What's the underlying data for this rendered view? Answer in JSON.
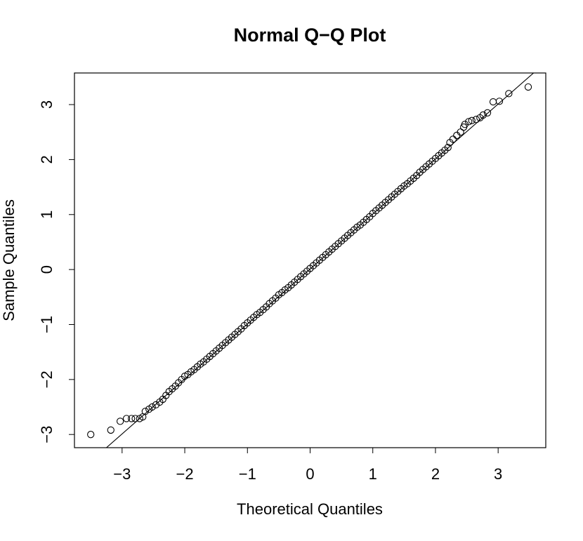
{
  "chart_data": {
    "type": "scatter",
    "title": "Normal Q−Q Plot",
    "x_label": "Theoretical Quantiles",
    "y_label": "Sample Quantiles",
    "xlim": [
      -3.76,
      3.76
    ],
    "ylim": [
      -3.24,
      3.575
    ],
    "xticks": [
      {
        "value": -3,
        "label": "−3"
      },
      {
        "value": -2,
        "label": "−2"
      },
      {
        "value": -1,
        "label": "−1"
      },
      0,
      1,
      2,
      3
    ],
    "yticks": [
      {
        "value": -3,
        "label": "−3"
      },
      {
        "value": -2,
        "label": "−2"
      },
      {
        "value": -1,
        "label": "−1"
      },
      0,
      1,
      2,
      3
    ],
    "color": "#000000",
    "qqline": {
      "intercept": 0.01,
      "slope": 1.0
    },
    "series": [
      {
        "name": "Sample",
        "x": [
          -3.5,
          -3.18,
          -3.03,
          -2.93,
          -2.85,
          -2.79,
          -2.72,
          -2.67,
          -2.63,
          -2.57,
          -2.52,
          -2.46,
          -2.4,
          -2.35,
          -2.3,
          -2.25,
          -2.2,
          -2.15,
          -2.1,
          -2.05,
          -2,
          -1.95,
          -1.9,
          -1.85,
          -1.8,
          -1.75,
          -1.7,
          -1.65,
          -1.6,
          -1.55,
          -1.5,
          -1.45,
          -1.4,
          -1.35,
          -1.3,
          -1.25,
          -1.2,
          -1.15,
          -1.1,
          -1.05,
          -1,
          -0.95,
          -0.9,
          -0.85,
          -0.8,
          -0.75,
          -0.7,
          -0.65,
          -0.6,
          -0.55,
          -0.5,
          -0.45,
          -0.4,
          -0.35,
          -0.3,
          -0.25,
          -0.2,
          -0.15,
          -0.1,
          -0.05,
          0,
          0.05,
          0.1,
          0.15,
          0.2,
          0.25,
          0.3,
          0.35,
          0.4,
          0.45,
          0.5,
          0.55,
          0.6,
          0.65,
          0.7,
          0.75,
          0.8,
          0.85,
          0.9,
          0.95,
          1,
          1.05,
          1.1,
          1.15,
          1.2,
          1.25,
          1.3,
          1.35,
          1.4,
          1.45,
          1.5,
          1.55,
          1.6,
          1.65,
          1.7,
          1.75,
          1.8,
          1.85,
          1.9,
          1.95,
          2,
          2.05,
          2.1,
          2.15,
          2.2,
          2.23,
          2.28,
          2.34,
          2.4,
          2.45,
          2.47,
          2.53,
          2.58,
          2.65,
          2.71,
          2.76,
          2.83,
          2.92,
          3.02,
          3.17,
          3.48
        ],
        "y": [
          -3.0,
          -2.92,
          -2.76,
          -2.71,
          -2.71,
          -2.71,
          -2.71,
          -2.68,
          -2.58,
          -2.54,
          -2.5,
          -2.46,
          -2.41,
          -2.36,
          -2.29,
          -2.22,
          -2.17,
          -2.12,
          -2.06,
          -2.0,
          -1.94,
          -1.91,
          -1.86,
          -1.82,
          -1.77,
          -1.72,
          -1.68,
          -1.63,
          -1.58,
          -1.53,
          -1.48,
          -1.43,
          -1.38,
          -1.33,
          -1.28,
          -1.23,
          -1.18,
          -1.13,
          -1.08,
          -1.02,
          -0.97,
          -0.92,
          -0.87,
          -0.82,
          -0.78,
          -0.73,
          -0.68,
          -0.62,
          -0.57,
          -0.52,
          -0.46,
          -0.42,
          -0.37,
          -0.33,
          -0.28,
          -0.23,
          -0.18,
          -0.13,
          -0.08,
          -0.03,
          0.02,
          0.07,
          0.12,
          0.17,
          0.22,
          0.27,
          0.32,
          0.37,
          0.42,
          0.47,
          0.52,
          0.57,
          0.62,
          0.67,
          0.72,
          0.77,
          0.81,
          0.86,
          0.91,
          0.96,
          1.02,
          1.07,
          1.12,
          1.17,
          1.22,
          1.27,
          1.32,
          1.37,
          1.42,
          1.47,
          1.52,
          1.56,
          1.61,
          1.66,
          1.71,
          1.77,
          1.82,
          1.87,
          1.92,
          1.97,
          2.02,
          2.07,
          2.12,
          2.17,
          2.22,
          2.31,
          2.37,
          2.44,
          2.5,
          2.59,
          2.64,
          2.69,
          2.71,
          2.73,
          2.76,
          2.81,
          2.85,
          3.05,
          3.06,
          3.2,
          3.32
        ]
      }
    ]
  }
}
